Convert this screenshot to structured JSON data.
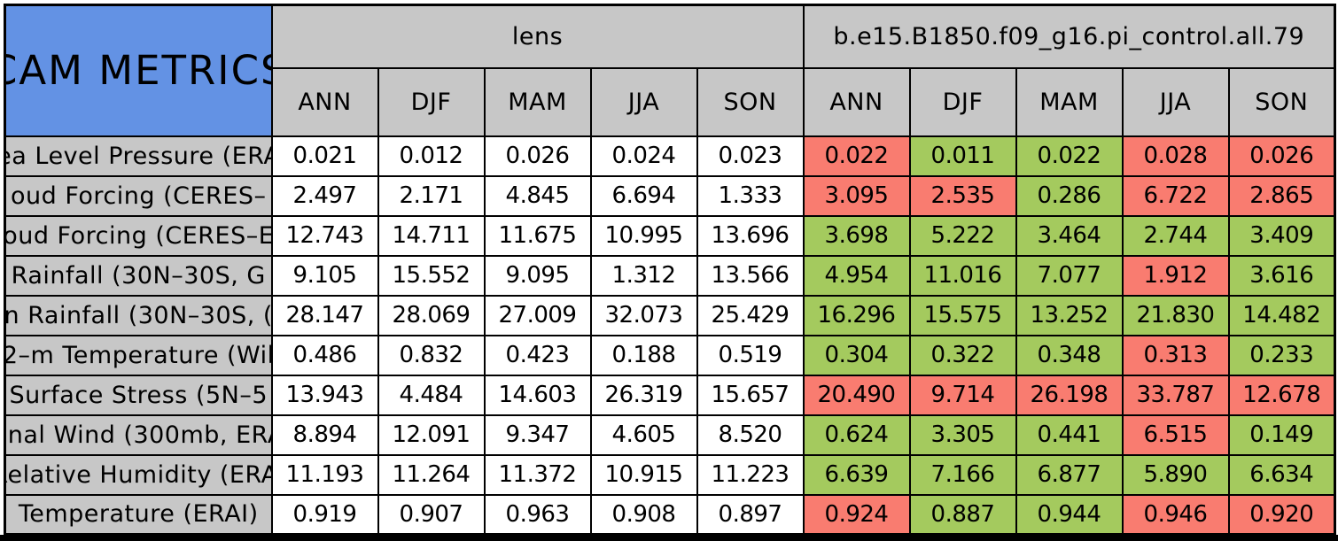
{
  "colors": {
    "title_bg": "#6392E4",
    "header_bg": "#C7C7C7",
    "better_green": "#A4CA5E",
    "worse_red": "#F97C70",
    "border": "#000000"
  },
  "chart_data": {
    "type": "table",
    "title": "CAM METRICS",
    "groups": [
      {
        "label": "lens",
        "columns": [
          "ANN",
          "DJF",
          "MAM",
          "JJA",
          "SON"
        ]
      },
      {
        "label": "b.e15.B1850.f09_g16.pi_control.all.79",
        "columns": [
          "ANN",
          "DJF",
          "MAM",
          "JJA",
          "SON"
        ]
      }
    ],
    "cell_color_legend": "right group cells filled green or red; lens cells white",
    "rows": [
      {
        "label": "ea Level Pressure (ERA",
        "lens": [
          "0.021",
          "0.012",
          "0.026",
          "0.024",
          "0.023"
        ],
        "control": [
          "0.022",
          "0.011",
          "0.022",
          "0.028",
          "0.026"
        ],
        "control_colors": [
          "red",
          "green",
          "green",
          "red",
          "red"
        ]
      },
      {
        "label": "oud Forcing (CERES–",
        "lens": [
          "2.497",
          "2.171",
          "4.845",
          "6.694",
          "1.333"
        ],
        "control": [
          "3.095",
          "2.535",
          "0.286",
          "6.722",
          "2.865"
        ],
        "control_colors": [
          "red",
          "red",
          "green",
          "red",
          "red"
        ]
      },
      {
        "label": "oud Forcing (CERES–E",
        "lens": [
          "12.743",
          "14.711",
          "11.675",
          "10.995",
          "13.696"
        ],
        "control": [
          "3.698",
          "5.222",
          "3.464",
          "2.744",
          "3.409"
        ],
        "control_colors": [
          "green",
          "green",
          "green",
          "green",
          "green"
        ]
      },
      {
        "label": "Rainfall (30N–30S, G",
        "lens": [
          "9.105",
          "15.552",
          "9.095",
          "1.312",
          "13.566"
        ],
        "control": [
          "4.954",
          "11.016",
          "7.077",
          "1.912",
          "3.616"
        ],
        "control_colors": [
          "green",
          "green",
          "green",
          "red",
          "green"
        ]
      },
      {
        "label": "n Rainfall (30N–30S, (",
        "lens": [
          "28.147",
          "28.069",
          "27.009",
          "32.073",
          "25.429"
        ],
        "control": [
          "16.296",
          "15.575",
          "13.252",
          "21.830",
          "14.482"
        ],
        "control_colors": [
          "green",
          "green",
          "green",
          "green",
          "green"
        ]
      },
      {
        "label": "2–m Temperature (Wil",
        "lens": [
          "0.486",
          "0.832",
          "0.423",
          "0.188",
          "0.519"
        ],
        "control": [
          "0.304",
          "0.322",
          "0.348",
          "0.313",
          "0.233"
        ],
        "control_colors": [
          "green",
          "green",
          "green",
          "red",
          "green"
        ]
      },
      {
        "label": "Surface Stress (5N–5",
        "lens": [
          "13.943",
          "4.484",
          "14.603",
          "26.319",
          "15.657"
        ],
        "control": [
          "20.490",
          "9.714",
          "26.198",
          "33.787",
          "12.678"
        ],
        "control_colors": [
          "red",
          "red",
          "red",
          "red",
          "red"
        ]
      },
      {
        "label": "onal Wind (300mb, ERA",
        "lens": [
          "8.894",
          "12.091",
          "9.347",
          "4.605",
          "8.520"
        ],
        "control": [
          "0.624",
          "3.305",
          "0.441",
          "6.515",
          "0.149"
        ],
        "control_colors": [
          "green",
          "green",
          "green",
          "red",
          "green"
        ]
      },
      {
        "label": "Relative Humidity (ERAI",
        "lens": [
          "11.193",
          "11.264",
          "11.372",
          "10.915",
          "11.223"
        ],
        "control": [
          "6.639",
          "7.166",
          "6.877",
          "5.890",
          "6.634"
        ],
        "control_colors": [
          "green",
          "green",
          "green",
          "green",
          "green"
        ]
      },
      {
        "label": "Temperature (ERAI)",
        "lens": [
          "0.919",
          "0.907",
          "0.963",
          "0.908",
          "0.897"
        ],
        "control": [
          "0.924",
          "0.887",
          "0.944",
          "0.946",
          "0.920"
        ],
        "control_colors": [
          "red",
          "green",
          "green",
          "red",
          "red"
        ]
      }
    ]
  }
}
